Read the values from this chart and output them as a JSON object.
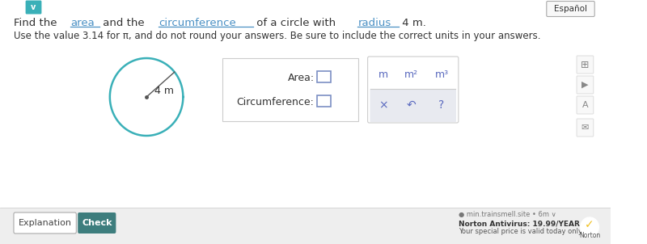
{
  "bg_color": "#ffffff",
  "title_parts": [
    {
      "text": "Find the ",
      "color": "#333333",
      "underline": false
    },
    {
      "text": "area",
      "color": "#4a90c4",
      "underline": true
    },
    {
      "text": " and the ",
      "color": "#333333",
      "underline": false
    },
    {
      "text": "circumference",
      "color": "#4a90c4",
      "underline": true
    },
    {
      "text": " of a circle with ",
      "color": "#333333",
      "underline": false
    },
    {
      "text": "radius",
      "color": "#4a90c4",
      "underline": true
    },
    {
      "text": " 4 m.",
      "color": "#333333",
      "underline": false
    }
  ],
  "subtitle": "Use the value 3.14 for π, and do not round your answers. Be sure to include the correct units in your answers.",
  "circle_color": "#3ab0b8",
  "circle_radius_label": "4 m",
  "area_label": "Area:",
  "circumference_label": "Circumference:",
  "units": [
    "m",
    "m²",
    "m³"
  ],
  "symbol_row": [
    "×",
    "↶",
    "?"
  ],
  "units_bg": "#e8eaf0",
  "sym_bg": "#e8eaf0",
  "btn_explanation_text": "Explanation",
  "btn_check_text": "Check",
  "btn_check_color": "#3d7d7d",
  "espanol_text": "Español",
  "footer_url": "min.trainsmell.site • 6m ∨",
  "footer_norton1": "Norton Antivirus: 19.99/YEAR",
  "footer_norton2": "Your special price is valid today only",
  "check_icon_color": "#3ab0b8",
  "input_border_color": "#7b8fc4",
  "box_border_color": "#cccccc",
  "units_text_color": "#5a6abf",
  "nav_border": "#dddddd"
}
